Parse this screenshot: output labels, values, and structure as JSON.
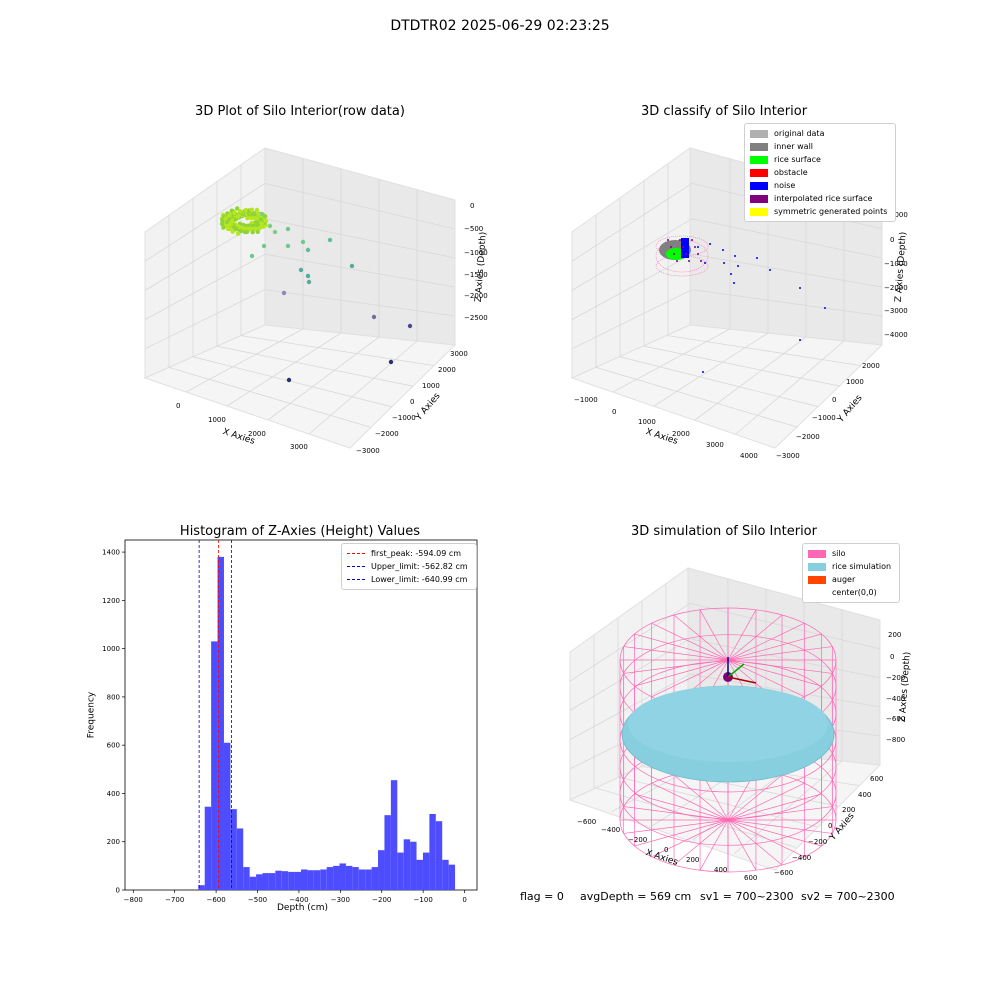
{
  "suptitle": "DTDTR02 2025-06-29 02:23:25",
  "status": {
    "flag": "flag = 0",
    "avg_depth": "avgDepth = 569 cm",
    "sv1": "sv1 = 700~2300",
    "sv2": "sv2 = 700~2300"
  },
  "colors": {
    "histogram_bar": "#4d4dff",
    "first_peak": "#ff0000",
    "limits": "#0000cc",
    "silo": "#ff69b4",
    "rice_simulation": "#87cedf",
    "auger": "#ff4500"
  },
  "chart_data": [
    {
      "type": "scatter",
      "projection": "3d",
      "title": "3D Plot of Silo Interior(row data)",
      "xlabel": "X Axies",
      "ylabel": "Y Axies",
      "zlabel": "Z Axies (Depth)",
      "x_ticks": [
        "0",
        "1000",
        "2000",
        "3000"
      ],
      "y_ticks": [
        "3000",
        "2000",
        "1000",
        "0",
        "−1000",
        "−2000",
        "−3000"
      ],
      "z_ticks": [
        "0",
        "−500",
        "−1000",
        "−1500",
        "−2000",
        "−2500"
      ],
      "grid": true
    },
    {
      "type": "scatter",
      "projection": "3d",
      "title": "3D classify of Silo Interior",
      "xlabel": "X Axies",
      "ylabel": "Y Axies",
      "zlabel": "Z Axies (Depth)",
      "x_ticks": [
        "−1000",
        "0",
        "1000",
        "2000",
        "3000",
        "4000"
      ],
      "y_ticks": [
        "2000",
        "1000",
        "0",
        "−1000",
        "−2000",
        "−3000"
      ],
      "z_ticks": [
        "1000",
        "0",
        "−1000",
        "−2000",
        "−3000",
        "−4000"
      ],
      "legend": [
        {
          "label": "original data",
          "color": "#b0b0b0"
        },
        {
          "label": "inner wall",
          "color": "#808080"
        },
        {
          "label": "rice surface",
          "color": "#00ff00"
        },
        {
          "label": "obstacle",
          "color": "#ff0000"
        },
        {
          "label": "noise",
          "color": "#0000ff"
        },
        {
          "label": "interpolated rice surface",
          "color": "#800080"
        },
        {
          "label": "symmetric generated points",
          "color": "#ffff00"
        }
      ],
      "legend_position": "top-right",
      "grid": true
    },
    {
      "type": "bar",
      "subtype": "histogram",
      "title": "Histogram of Z-Axies (Height) Values",
      "xlabel": "Depth (cm)",
      "ylabel": "Frequency",
      "xlim": [
        -820,
        30
      ],
      "ylim": [
        0,
        1450
      ],
      "x_ticks": [
        -800,
        -700,
        -600,
        -500,
        -400,
        -300,
        -200,
        -100,
        0
      ],
      "y_ticks": [
        0,
        200,
        400,
        600,
        800,
        1000,
        1200,
        1400
      ],
      "bin_width": 15.5,
      "bin_starts": [
        -643,
        -627.5,
        -612,
        -596.5,
        -581,
        -565.5,
        -550,
        -534.5,
        -519,
        -503.5,
        -488,
        -472.5,
        -457,
        -441.5,
        -426,
        -410.5,
        -395,
        -379.5,
        -364,
        -348.5,
        -333,
        -317.5,
        -302,
        -286.5,
        -271,
        -255.5,
        -240,
        -224.5,
        -209,
        -193.5,
        -178,
        -162.5,
        -147,
        -131.5,
        -116,
        -100.5,
        -85,
        -69.5,
        -54,
        -38.5,
        -23,
        -7.5
      ],
      "values": [
        20,
        345,
        1030,
        1380,
        610,
        335,
        255,
        95,
        55,
        65,
        70,
        70,
        80,
        78,
        75,
        75,
        85,
        82,
        82,
        85,
        95,
        100,
        110,
        100,
        95,
        85,
        85,
        95,
        165,
        310,
        455,
        155,
        210,
        200,
        125,
        155,
        315,
        285,
        125,
        105,
        0,
        0
      ],
      "reference_lines": [
        {
          "label": "first_peak: -594.09 cm",
          "value": -594.09,
          "color": "#ff0000"
        },
        {
          "label": "Upper_limit: -562.82 cm",
          "value": -562.82,
          "color": "#0000cc"
        },
        {
          "label": "Lower_limit: -640.99 cm",
          "value": -640.99,
          "color": "#0000cc"
        }
      ],
      "legend_position": "top-right"
    },
    {
      "type": "scatter",
      "projection": "3d",
      "title": "3D simulation of Silo Interior",
      "xlabel": "X Axies",
      "ylabel": "Y Axies",
      "zlabel": "Z Axies (Depth)",
      "x_ticks": [
        "−600",
        "−400",
        "−200",
        "0",
        "200",
        "400",
        "600"
      ],
      "y_ticks": [
        "600",
        "400",
        "200",
        "0",
        "−200",
        "−400",
        "−600"
      ],
      "z_ticks": [
        "200",
        "0",
        "−200",
        "−400",
        "−600",
        "−800"
      ],
      "legend": [
        {
          "label": "silo",
          "color": "#ff69b4"
        },
        {
          "label": "rice simulation",
          "color": "#87cedf"
        },
        {
          "label": "auger",
          "color": "#ff4500"
        },
        {
          "label": "center(0,0)",
          "color": "#ffffff"
        }
      ],
      "legend_position": "top-right",
      "grid": true
    }
  ]
}
